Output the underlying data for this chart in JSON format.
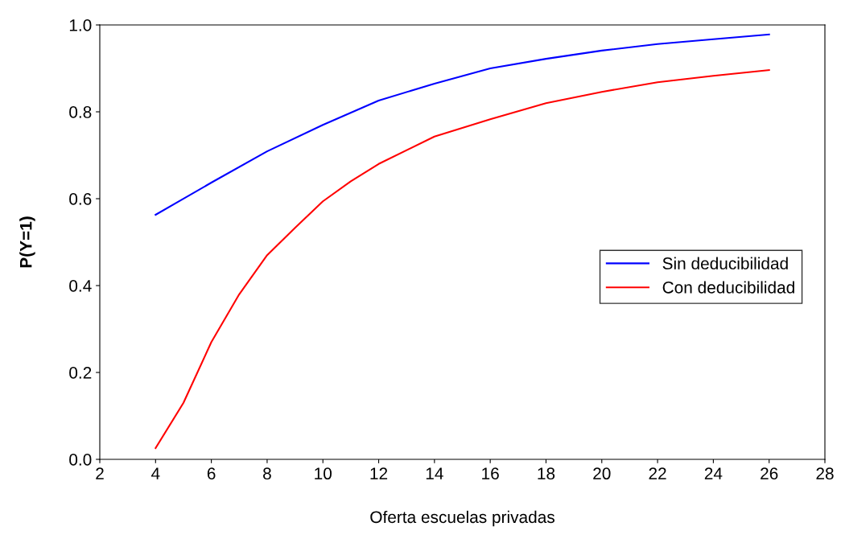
{
  "chart_data": {
    "type": "line",
    "xlabel": "Oferta escuelas privadas",
    "ylabel": "P(Y=1)",
    "xlim": [
      2,
      28
    ],
    "xticks": [
      2,
      4,
      6,
      8,
      10,
      12,
      14,
      16,
      18,
      20,
      22,
      24,
      26,
      28
    ],
    "ylim": [
      0,
      1
    ],
    "yticks": [
      {
        "value": 0,
        "label": "0.0"
      },
      {
        "value": 0.2,
        "label": "0.2"
      },
      {
        "value": 0.4,
        "label": "0.4"
      },
      {
        "value": 0.6,
        "label": "0.6"
      },
      {
        "value": 0.8,
        "label": "0.8"
      },
      {
        "value": 1,
        "label": "1.0"
      }
    ],
    "grid": false,
    "legend": "right",
    "line_style": "solid",
    "series": [
      {
        "name": "Sin deducibilidad",
        "color": "#0000ff",
        "x": [
          4,
          6,
          8,
          10,
          12,
          14,
          16,
          18,
          20,
          22,
          24,
          26
        ],
        "values": [
          0.563,
          0.637,
          0.709,
          0.77,
          0.826,
          0.865,
          0.9,
          0.922,
          0.941,
          0.956,
          0.967,
          0.978
        ]
      },
      {
        "name": "Con deducibilidad",
        "color": "#ff0000",
        "x": [
          4,
          5,
          6,
          7,
          8,
          9,
          10,
          11,
          12,
          14,
          16,
          18,
          20,
          22,
          24,
          26
        ],
        "values": [
          0.026,
          0.13,
          0.27,
          0.38,
          0.47,
          0.533,
          0.594,
          0.64,
          0.68,
          0.743,
          0.783,
          0.82,
          0.846,
          0.868,
          0.883,
          0.896
        ]
      }
    ]
  }
}
